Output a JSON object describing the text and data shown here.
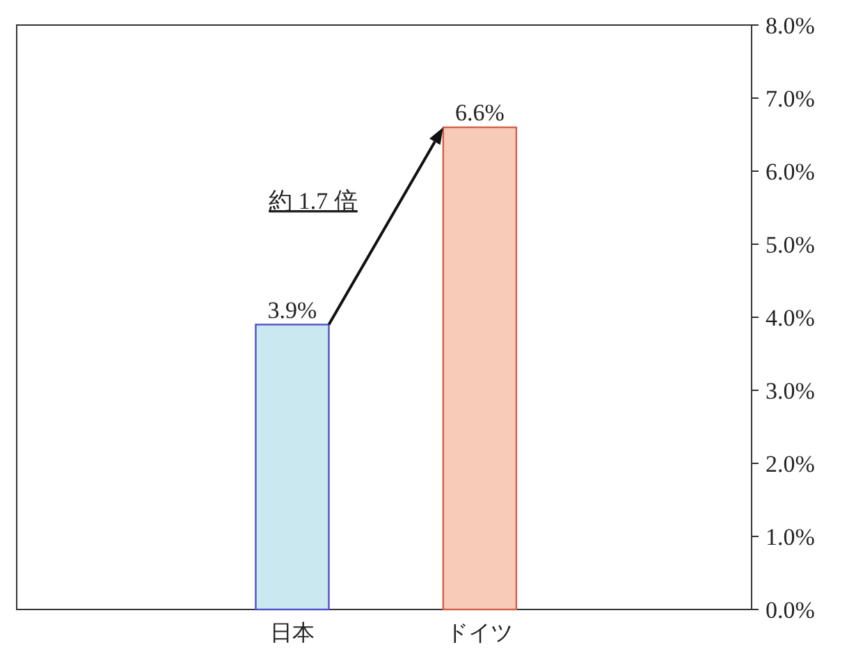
{
  "chart_data": {
    "type": "bar",
    "categories": [
      "日本",
      "ドイツ"
    ],
    "values": [
      3.9,
      6.6
    ],
    "colors": [
      "#c9e8f0",
      "#f7cbb8"
    ],
    "value_labels": [
      "3.9%",
      "6.6%"
    ],
    "ylim": [
      0,
      8
    ],
    "yticks": [
      {
        "value": 0,
        "label": "0.0%"
      },
      {
        "value": 1,
        "label": "1.0%"
      },
      {
        "value": 2,
        "label": "2.0%"
      },
      {
        "value": 3,
        "label": "3.0%"
      },
      {
        "value": 4,
        "label": "4.0%"
      },
      {
        "value": 5,
        "label": "5.0%"
      },
      {
        "value": 6,
        "label": "6.0%"
      },
      {
        "value": 7,
        "label": "7.0%"
      },
      {
        "value": 8,
        "label": "8.0%"
      }
    ],
    "annotations": [
      "約 1.7 倍"
    ]
  }
}
